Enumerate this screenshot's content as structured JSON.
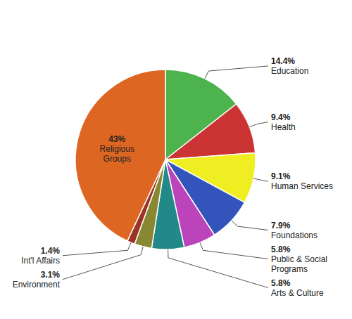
{
  "chart_data": {
    "type": "pie",
    "categories": [
      "Education",
      "Health",
      "Human Services",
      "Foundations",
      "Public & Social Programs",
      "Arts & Culture",
      "Environment",
      "Int'l Affairs",
      "Religious Groups"
    ],
    "values": [
      14.4,
      9.4,
      9.1,
      7.9,
      5.8,
      5.8,
      3.1,
      1.4,
      43.0
    ],
    "value_labels": [
      "14.4%",
      "9.4%",
      "9.1%",
      "7.9%",
      "5.8%",
      "5.8%",
      "3.1%",
      "1.4%",
      "43%"
    ],
    "colors": [
      "#4db34d",
      "#cc3333",
      "#eeee22",
      "#3355bb",
      "#bb44bb",
      "#228888",
      "#888833",
      "#993322",
      "#dd6622"
    ],
    "data_labels": true
  }
}
